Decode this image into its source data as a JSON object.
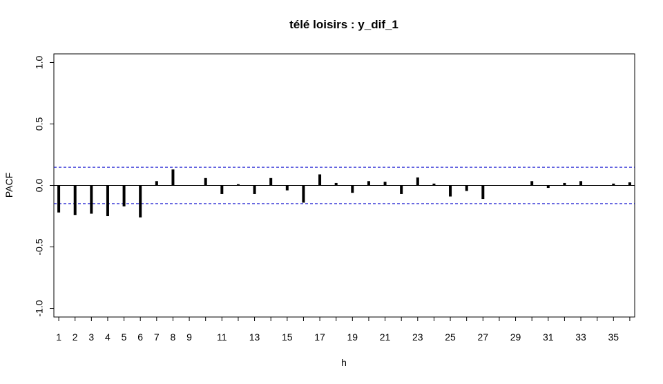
{
  "chart_data": {
    "type": "bar",
    "title": "télé loisirs : y_dif_1",
    "xlabel": "h",
    "ylabel": "PACF",
    "xlim": [
      0.7,
      36.3
    ],
    "ylim": [
      -1.07,
      1.07
    ],
    "x_ticks": [
      1,
      2,
      3,
      4,
      5,
      6,
      7,
      8,
      9,
      11,
      13,
      15,
      17,
      19,
      21,
      23,
      25,
      27,
      29,
      31,
      33,
      35
    ],
    "y_ticks": [
      -1.0,
      -0.5,
      0.0,
      0.5,
      1.0
    ],
    "y_tick_labels": [
      "-1.0",
      "-0.5",
      "0.0",
      "0.5",
      "1.0"
    ],
    "x_minor_ticks": [
      10,
      12,
      14,
      16,
      18,
      20,
      22,
      24,
      26,
      28,
      30,
      32,
      34,
      36
    ],
    "lags": [
      1,
      2,
      3,
      4,
      5,
      6,
      7,
      8,
      9,
      10,
      11,
      12,
      13,
      14,
      15,
      16,
      17,
      18,
      19,
      20,
      21,
      22,
      23,
      24,
      25,
      26,
      27,
      28,
      29,
      30,
      31,
      32,
      33,
      34,
      35,
      36
    ],
    "values": [
      -0.22,
      -0.24,
      -0.23,
      -0.25,
      -0.17,
      -0.26,
      0.035,
      0.13,
      0.0,
      0.06,
      -0.07,
      0.01,
      -0.07,
      0.06,
      -0.04,
      -0.14,
      0.09,
      0.02,
      -0.06,
      0.035,
      0.03,
      -0.07,
      0.065,
      0.015,
      -0.09,
      -0.045,
      -0.11,
      0.0,
      0.0,
      0.035,
      -0.02,
      0.02,
      0.035,
      0.0,
      0.015,
      0.025
    ],
    "confidence_bound": 0.148,
    "colors": {
      "bars": "#000000",
      "confidence": "#0000cc",
      "zero_line": "#000000",
      "frame": "#000000"
    }
  }
}
